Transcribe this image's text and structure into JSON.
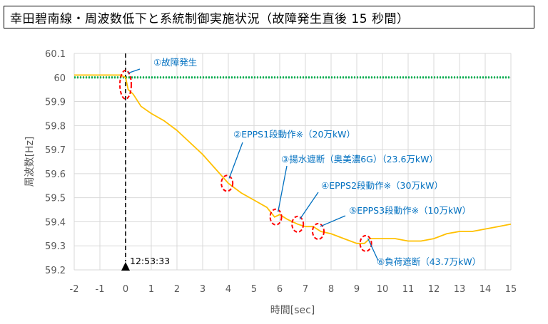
{
  "page_title": "幸田碧南線・周波数低下と系統制御実施状況（故障発生直後 15 秒間）",
  "chart_data": {
    "type": "line",
    "title": "幸田碧南線・周波数低下と系統制御実施状況（故障発生直後 15 秒間）",
    "xlabel": "時間[sec]",
    "ylabel": "周波数[Hz]",
    "xlim": [
      -2,
      15
    ],
    "ylim": [
      59.2,
      60.1
    ],
    "x_ticks": [
      -2,
      -1,
      0,
      1,
      2,
      3,
      4,
      5,
      6,
      7,
      8,
      9,
      10,
      11,
      12,
      13,
      14,
      15
    ],
    "y_ticks": [
      59.2,
      59.3,
      59.4,
      59.5,
      59.6,
      59.7,
      59.8,
      59.9,
      60,
      60.1
    ],
    "y_tick_labels": [
      "59.2",
      "59.3",
      "59.4",
      "59.5",
      "59.6",
      "59.7",
      "59.8",
      "59.9",
      "60",
      "60.1"
    ],
    "grid": true,
    "reference_line": {
      "y": 60.0,
      "color": "#00b050",
      "style": "dotted"
    },
    "fault_marker": {
      "x": 0,
      "time_label": "12:53:33"
    },
    "series": [
      {
        "color": "#ffc000",
        "x": [
          -2,
          -1,
          -0.2,
          0,
          0.1,
          0.3,
          0.6,
          1.0,
          1.5,
          2.0,
          2.5,
          3.0,
          3.5,
          4.0,
          4.5,
          5.0,
          5.5,
          5.8,
          6.0,
          6.3,
          6.7,
          7.0,
          7.3,
          7.6,
          8.0,
          8.5,
          9.0,
          9.3,
          9.5,
          10.0,
          10.5,
          11.0,
          11.5,
          12.0,
          12.5,
          13.0,
          13.5,
          14.0,
          14.5,
          15.0
        ],
        "y": [
          60.01,
          60.01,
          60.01,
          60.0,
          59.95,
          59.93,
          59.88,
          59.85,
          59.82,
          59.78,
          59.73,
          59.68,
          59.62,
          59.56,
          59.52,
          59.49,
          59.46,
          59.42,
          59.43,
          59.41,
          59.39,
          59.38,
          59.38,
          59.36,
          59.35,
          59.33,
          59.31,
          59.31,
          59.33,
          59.33,
          59.33,
          59.32,
          59.32,
          59.33,
          59.35,
          59.36,
          59.36,
          59.37,
          59.38,
          59.39
        ]
      }
    ],
    "events": [
      {
        "label": "①故障発生",
        "x": 0,
        "y": 59.97
      },
      {
        "label": "②EPPS1段動作※（20万kW）",
        "x": 3.95,
        "y": 59.56
      },
      {
        "label": "③揚水遮断（奥美濃6G）（23.6万kW）",
        "x": 5.85,
        "y": 59.42
      },
      {
        "label": "④EPPS2段動作※（30万kW）",
        "x": 6.7,
        "y": 59.39
      },
      {
        "label": "⑤EPPS3段動作※（10万kW）",
        "x": 7.5,
        "y": 59.36
      },
      {
        "label": "⑥負荷遮断（43.7万kW）",
        "x": 9.35,
        "y": 59.31
      }
    ]
  }
}
